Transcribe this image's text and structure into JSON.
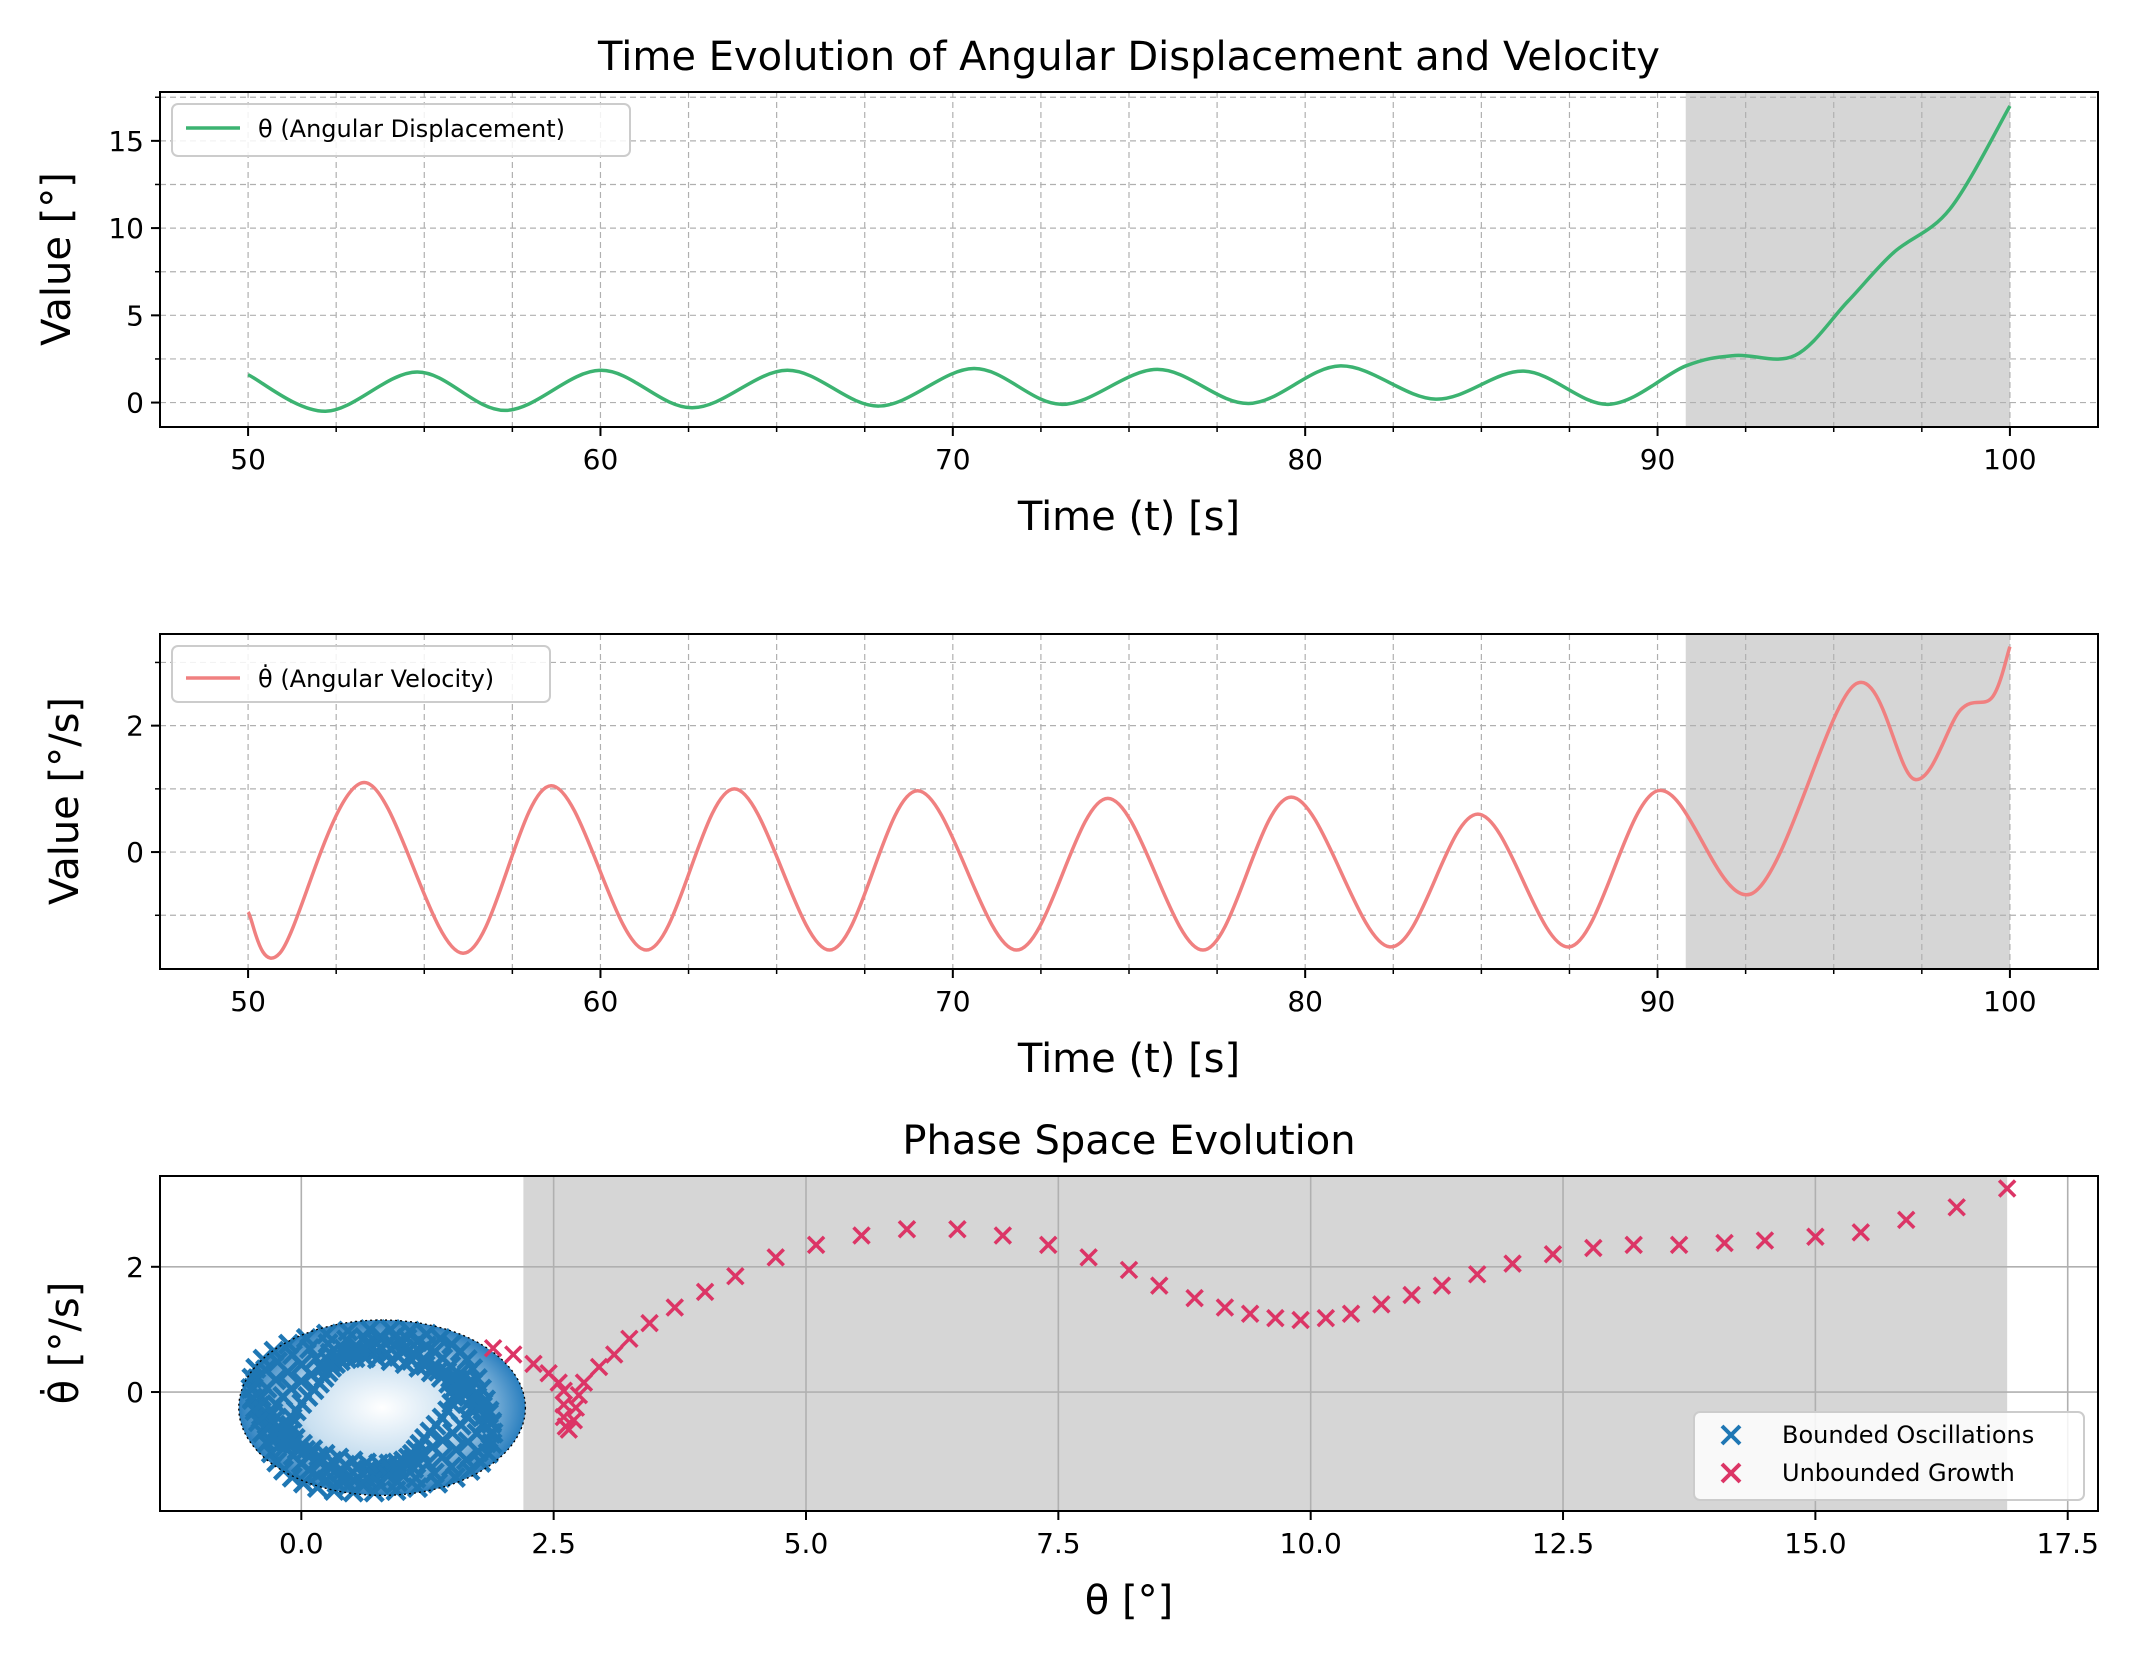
{
  "colors": {
    "theta": "#3cb371",
    "theta_dot": "#f08080",
    "bounded": "#1f77b4",
    "unbounded": "#dc3566",
    "shade": "#d6d6d6",
    "grid": "#b0b0b0"
  },
  "chart_data": [
    {
      "type": "line",
      "title": "Time Evolution of Angular Displacement and Velocity",
      "xlabel": "Time (t) [s]",
      "ylabel": "Value [°]",
      "xlim": [
        47.5,
        102.5
      ],
      "ylim": [
        -1.4,
        17.8
      ],
      "xticks": [
        50,
        60,
        70,
        80,
        90,
        100
      ],
      "yticks": [
        0,
        5,
        10,
        15
      ],
      "grid": true,
      "legend": "top-left",
      "shaded_region": [
        90.8,
        100
      ],
      "series": [
        {
          "name": "θ (Angular Displacement)",
          "x": [
            50,
            52.2,
            54.8,
            57.3,
            60,
            62.6,
            65.3,
            67.9,
            70.6,
            73.1,
            75.8,
            78.4,
            81.0,
            83.7,
            86.2,
            88.6,
            90.8,
            92.2,
            93.9,
            95.4,
            96.7,
            98.3,
            100
          ],
          "y": [
            1.6,
            -0.5,
            1.75,
            -0.45,
            1.85,
            -0.3,
            1.85,
            -0.2,
            1.95,
            -0.1,
            1.9,
            -0.05,
            2.1,
            0.2,
            1.8,
            -0.1,
            2.1,
            2.7,
            2.7,
            5.8,
            8.6,
            11.1,
            17.0
          ]
        }
      ]
    },
    {
      "type": "line",
      "title": "",
      "xlabel": "Time (t) [s]",
      "ylabel": "Value [°/s]",
      "xlim": [
        47.5,
        102.5
      ],
      "ylim": [
        -1.85,
        3.45
      ],
      "xticks": [
        50,
        60,
        70,
        80,
        90,
        100
      ],
      "yticks": [
        0,
        2
      ],
      "grid": true,
      "legend": "top-left",
      "shaded_region": [
        90.8,
        100
      ],
      "series": [
        {
          "name": "θ̇ (Angular Velocity)",
          "x": [
            50,
            50.9,
            53.3,
            56.1,
            58.6,
            61.3,
            63.8,
            66.5,
            69.0,
            71.8,
            74.4,
            77.1,
            79.6,
            82.4,
            84.9,
            87.5,
            90.0,
            92.7,
            95.6,
            97.3,
            98.6,
            99.5,
            100
          ],
          "y": [
            -0.95,
            -1.6,
            1.1,
            -1.6,
            1.05,
            -1.55,
            1.0,
            -1.55,
            0.97,
            -1.55,
            0.85,
            -1.55,
            0.87,
            -1.5,
            0.6,
            -1.5,
            0.97,
            -0.65,
            2.65,
            1.15,
            2.25,
            2.45,
            3.25
          ]
        }
      ]
    },
    {
      "type": "scatter",
      "title": "Phase Space Evolution",
      "xlabel": "θ [°]",
      "ylabel": "θ̇  [°/s]",
      "xlim": [
        -1.4,
        17.8
      ],
      "ylim": [
        -1.9,
        3.45
      ],
      "xticks": [
        0.0,
        2.5,
        5.0,
        7.5,
        10.0,
        12.5,
        15.0,
        17.5
      ],
      "yticks": [
        0,
        2
      ],
      "grid": true,
      "legend": "bottom-right",
      "shaded_region": [
        2.2,
        16.9
      ],
      "bounded_ellipse": {
        "cx": 0.8,
        "cy": -0.25,
        "rx": 1.42,
        "ry": 1.4
      },
      "series": [
        {
          "name": "Bounded Oscillations",
          "marker": "x",
          "orbit": {
            "cx": 0.7,
            "cy": -0.3,
            "rx_min": 0.75,
            "rx_max": 1.25,
            "ry_min": 0.85,
            "ry_max": 1.3
          }
        },
        {
          "name": "Unbounded Growth",
          "marker": "x",
          "points": [
            [
              1.9,
              0.7
            ],
            [
              2.1,
              0.6
            ],
            [
              2.3,
              0.45
            ],
            [
              2.45,
              0.3
            ],
            [
              2.55,
              0.15
            ],
            [
              2.6,
              0.02
            ],
            [
              2.6,
              -0.2
            ],
            [
              2.6,
              -0.4
            ],
            [
              2.62,
              -0.55
            ],
            [
              2.65,
              -0.6
            ],
            [
              2.7,
              -0.45
            ],
            [
              2.72,
              -0.25
            ],
            [
              2.75,
              -0.05
            ],
            [
              2.8,
              0.15
            ],
            [
              2.95,
              0.4
            ],
            [
              3.1,
              0.6
            ],
            [
              3.25,
              0.85
            ],
            [
              3.45,
              1.1
            ],
            [
              3.7,
              1.35
            ],
            [
              4.0,
              1.6
            ],
            [
              4.3,
              1.85
            ],
            [
              4.7,
              2.15
            ],
            [
              5.1,
              2.35
            ],
            [
              5.55,
              2.5
            ],
            [
              6.0,
              2.6
            ],
            [
              6.5,
              2.6
            ],
            [
              6.95,
              2.5
            ],
            [
              7.4,
              2.35
            ],
            [
              7.8,
              2.15
            ],
            [
              8.2,
              1.95
            ],
            [
              8.5,
              1.7
            ],
            [
              8.85,
              1.5
            ],
            [
              9.15,
              1.35
            ],
            [
              9.4,
              1.25
            ],
            [
              9.65,
              1.18
            ],
            [
              9.9,
              1.15
            ],
            [
              10.15,
              1.18
            ],
            [
              10.4,
              1.25
            ],
            [
              10.7,
              1.4
            ],
            [
              11.0,
              1.55
            ],
            [
              11.3,
              1.7
            ],
            [
              11.65,
              1.88
            ],
            [
              12.0,
              2.05
            ],
            [
              12.4,
              2.2
            ],
            [
              12.8,
              2.3
            ],
            [
              13.2,
              2.35
            ],
            [
              13.65,
              2.35
            ],
            [
              14.1,
              2.38
            ],
            [
              14.5,
              2.42
            ],
            [
              15.0,
              2.48
            ],
            [
              15.45,
              2.55
            ],
            [
              15.9,
              2.75
            ],
            [
              16.4,
              2.95
            ],
            [
              16.9,
              3.25
            ]
          ]
        }
      ]
    }
  ]
}
